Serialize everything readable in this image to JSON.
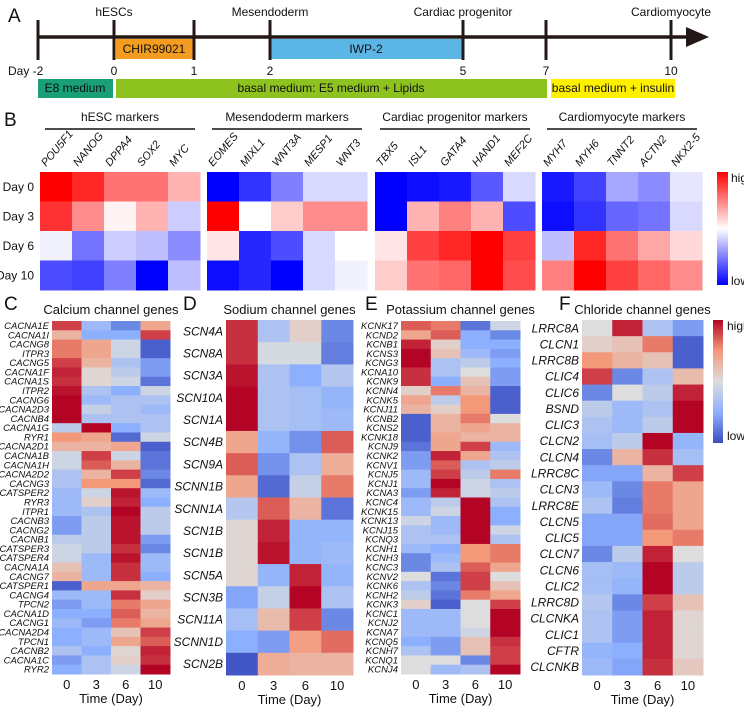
{
  "panel_letters": {
    "a": "A",
    "b": "B",
    "c": "C",
    "d": "D",
    "e": "E",
    "f": "F"
  },
  "panel_a": {
    "stages": [
      "hESCs",
      "Mesendoderm",
      "Cardiac progenitor",
      "Cardiomyocyte"
    ],
    "days": [
      "Day -2",
      "0",
      "1",
      "2",
      "5",
      "7",
      "10"
    ],
    "treatments": [
      {
        "label": "CHIR99021",
        "color": "#f39c1f"
      },
      {
        "label": "IWP-2",
        "color": "#5bb6e6"
      }
    ],
    "media": [
      {
        "label": "E8 medium",
        "color": "#19a078"
      },
      {
        "label": "basal medium: E5 medium + Lipids",
        "color": "#8dc21f"
      },
      {
        "label": "basal medium + insulin",
        "color": "#fff000"
      }
    ]
  },
  "colorbar": {
    "high": "high",
    "low": "low"
  },
  "chart_data": [
    {
      "type": "heatmap",
      "panel": "B",
      "colormap": "bwr",
      "scale": [
        -1,
        1
      ],
      "row_labels": [
        "Day 0",
        "Day 3",
        "Day 6",
        "Day 10"
      ],
      "groups": [
        {
          "title": "hESC markers",
          "genes": [
            "POU5F1",
            "NANOG",
            "DPPA4",
            "SOX2",
            "MYC"
          ],
          "values": [
            [
              1,
              0.8,
              -0.05,
              -0.7
            ],
            [
              0.85,
              0.45,
              -0.55,
              -0.75
            ],
            [
              0.55,
              0.05,
              -0.2,
              -0.5
            ],
            [
              0.55,
              0.3,
              -0.25,
              -1
            ],
            [
              0.3,
              -0.2,
              -0.45,
              -0.25
            ]
          ]
        },
        {
          "title": "Mesendoderm markers",
          "genes": [
            "EOMES",
            "MIXL1",
            "WNT3A",
            "MESP1",
            "WNT3"
          ],
          "values": [
            [
              -1,
              1,
              0.1,
              -0.95
            ],
            [
              -0.8,
              0,
              -0.85,
              -0.85
            ],
            [
              -0.5,
              0.2,
              -0.7,
              -1
            ],
            [
              -0.15,
              0.45,
              -0.15,
              -0.15
            ],
            [
              -0.15,
              0.45,
              0,
              -0.05
            ]
          ]
        },
        {
          "title": "Cardiac progenitor markers",
          "genes": [
            "TBX5",
            "ISL1",
            "GATA4",
            "HAND1",
            "MEF2C"
          ],
          "values": [
            [
              -1,
              -1,
              0.1,
              0.2
            ],
            [
              -0.95,
              0.3,
              0.75,
              0.55
            ],
            [
              -0.9,
              0.5,
              0.85,
              0.6
            ],
            [
              -0.65,
              0.3,
              1,
              1
            ],
            [
              -0.15,
              -0.7,
              0.75,
              0.7
            ]
          ]
        },
        {
          "title": "Cardiomyocyte markers",
          "genes": [
            "MYH7",
            "MYH6",
            "TNNT2",
            "ACTN2",
            "NKX2-5"
          ],
          "values": [
            [
              -0.9,
              -0.95,
              -0.25,
              0.5
            ],
            [
              -0.75,
              -0.8,
              0.85,
              1
            ],
            [
              -0.35,
              -0.6,
              0.55,
              0.75
            ],
            [
              -0.45,
              -0.55,
              0.35,
              0.6
            ],
            [
              -0.1,
              -0.15,
              0.15,
              0.45
            ]
          ]
        }
      ]
    },
    {
      "type": "heatmap",
      "panel": "C",
      "title": "Calcium channel genes",
      "colormap": "coolwarm",
      "scale": [
        -1,
        1
      ],
      "x_ticks": [
        "0",
        "3",
        "6",
        "10"
      ],
      "xlabel": "Time (Day)",
      "genes": [
        "CACNA1E",
        "CACNA1I",
        "CACNG8",
        "ITPR3",
        "CACNG5",
        "CACNA1F",
        "CACNA1S",
        "ITPR2",
        "CACNG6",
        "CACNA2D3",
        "CACNB4",
        "CACNA1G",
        "RYR1",
        "CACNA2D1",
        "CACNA1B",
        "CACNA1H",
        "CACNA2D2",
        "CACNG3",
        "CATSPER2",
        "RYR3",
        "ITPR1",
        "CACNB3",
        "CACNG2",
        "CACNB1",
        "CATSPER3",
        "CATSPER4",
        "CACNA1A",
        "CACNG7",
        "CATSPER1",
        "CACNG4",
        "TPCN2",
        "CACNA1D",
        "CACNG1",
        "CACNA2D4",
        "TPCN1",
        "CACNB2",
        "CACNA1C",
        "RYR2"
      ],
      "values": [
        [
          0.8,
          -0.4,
          -0.7,
          0.4
        ],
        [
          0.3,
          -0.5,
          -0.5,
          0.8
        ],
        [
          0.6,
          0.4,
          -0.1,
          -0.9
        ],
        [
          0.6,
          0.4,
          -0.1,
          -0.9
        ],
        [
          0.8,
          0.3,
          -0.3,
          -0.6
        ],
        [
          0.9,
          0.05,
          -0.2,
          -0.6
        ],
        [
          0.85,
          0.05,
          -0.1,
          -0.8
        ],
        [
          0.95,
          -0.3,
          -0.5,
          -0.1
        ],
        [
          1,
          -0.4,
          -0.3,
          -0.3
        ],
        [
          1,
          -0.15,
          -0.3,
          -0.4
        ],
        [
          1,
          -0.3,
          -0.3,
          -0.3
        ],
        [
          -0.2,
          1,
          -0.5,
          -0.3
        ],
        [
          0.5,
          0.4,
          -0.85,
          -0.1
        ],
        [
          0.3,
          0.3,
          0.4,
          -0.9
        ],
        [
          -0.1,
          0.8,
          -0.1,
          -0.8
        ],
        [
          -0.1,
          0.7,
          0.3,
          -0.8
        ],
        [
          -0.3,
          0.3,
          0.8,
          -0.7
        ],
        [
          -0.3,
          0.5,
          0.5,
          -0.85
        ],
        [
          -0.4,
          -0.1,
          0.95,
          -0.4
        ],
        [
          -0.4,
          0.1,
          0.9,
          -0.5
        ],
        [
          -0.4,
          -0.3,
          1,
          -0.2
        ],
        [
          -0.6,
          -0.2,
          0.95,
          -0.2
        ],
        [
          -0.6,
          -0.2,
          0.95,
          -0.2
        ],
        [
          -0.2,
          -0.2,
          0.95,
          -0.6
        ],
        [
          -0.1,
          -0.2,
          0.85,
          -0.7
        ],
        [
          -0.1,
          -0.4,
          0.95,
          -0.4
        ],
        [
          0.2,
          -0.4,
          0.85,
          -0.4
        ],
        [
          0.3,
          -0.4,
          0.85,
          -0.5
        ],
        [
          -0.9,
          0.4,
          0.4,
          0.3
        ],
        [
          -0.4,
          -0.4,
          0.85,
          0.1
        ],
        [
          -0.6,
          -0.4,
          0.6,
          0.4
        ],
        [
          -0.5,
          -0.5,
          0.7,
          0.3
        ],
        [
          -0.4,
          -0.6,
          0.6,
          0.4
        ],
        [
          -0.5,
          -0.4,
          0.2,
          0.8
        ],
        [
          -0.5,
          -0.4,
          0.4,
          0.7
        ],
        [
          -0.3,
          -0.5,
          0.05,
          0.9
        ],
        [
          -0.6,
          -0.3,
          0.1,
          0.85
        ],
        [
          -0.5,
          -0.3,
          -0.1,
          1
        ]
      ]
    },
    {
      "type": "heatmap",
      "panel": "D",
      "title": "Sodium channel genes",
      "colormap": "coolwarm",
      "scale": [
        -1,
        1
      ],
      "x_ticks": [
        "0",
        "3",
        "6",
        "10"
      ],
      "xlabel": "Time (Day)",
      "genes": [
        "SCN4A",
        "SCN8A",
        "SCN3A",
        "SCN10A",
        "SCN1A",
        "SCN4B",
        "SCN9A",
        "SCNN1B",
        "SCNN1A",
        "SCN1B",
        "SCN1B",
        "SCN5A",
        "SCN3B",
        "SCN11A",
        "SCNN1D",
        "SCN2B"
      ],
      "values": [
        [
          0.85,
          -0.3,
          0.1,
          -0.7
        ],
        [
          0.85,
          -0.05,
          -0.05,
          -0.75
        ],
        [
          0.95,
          -0.3,
          -0.5,
          -0.25
        ],
        [
          1,
          -0.3,
          -0.35,
          -0.45
        ],
        [
          1,
          -0.3,
          -0.35,
          -0.4
        ],
        [
          0.4,
          -0.45,
          -0.65,
          0.7
        ],
        [
          0.7,
          -0.65,
          -0.3,
          0.35
        ],
        [
          0.4,
          -0.85,
          -0.15,
          0.6
        ],
        [
          -0.25,
          0.7,
          0.3,
          -0.8
        ],
        [
          0.05,
          0.9,
          -0.45,
          -0.45
        ],
        [
          0.05,
          0.95,
          -0.45,
          -0.4
        ],
        [
          0.05,
          -0.45,
          0.9,
          -0.45
        ],
        [
          -0.55,
          -0.15,
          1,
          -0.3
        ],
        [
          -0.35,
          0.25,
          0.8,
          -0.7
        ],
        [
          -0.5,
          -0.6,
          0.45,
          0.65
        ],
        [
          -0.95,
          0.35,
          0.3,
          0.3
        ]
      ]
    },
    {
      "type": "heatmap",
      "panel": "E",
      "title": "Potassium channel genes",
      "colormap": "coolwarm",
      "scale": [
        -1,
        1
      ],
      "x_ticks": [
        "0",
        "3",
        "6",
        "10"
      ],
      "xlabel": "Time (Day)",
      "genes": [
        "KCNK17",
        "KCND2",
        "KCNB1",
        "KCNS3",
        "KCNG3",
        "KCNA10",
        "KCNK9",
        "KCNN4",
        "KCNK5",
        "KCNJ11",
        "KCNB2",
        "KCNS2",
        "KCNK18",
        "KCNJ9",
        "KCNK2",
        "KCNV1",
        "KCNJ5",
        "KCNJ1",
        "KCNA3",
        "KCNC4",
        "KCNK15",
        "KCNK13",
        "KCNJ15",
        "KCNQ3",
        "KCNH1",
        "KCNH3",
        "KCNC3",
        "KCNV2",
        "KCNK6",
        "KCNH2",
        "KCNK3",
        "KCNC1",
        "KCNJ2",
        "KCNA7",
        "KCNQ5",
        "KCNH7",
        "KCNQ1",
        "KCNJ4"
      ],
      "values": [
        [
          0.7,
          0.6,
          -0.8,
          -0.1
        ],
        [
          0.4,
          0.7,
          -0.5,
          -0.7
        ],
        [
          0.9,
          0.1,
          -0.5,
          -0.5
        ],
        [
          1,
          0.2,
          -0.4,
          -0.6
        ],
        [
          1,
          -0.3,
          -0.2,
          -0.5
        ],
        [
          0.85,
          -0.3,
          0,
          -0.6
        ],
        [
          0.85,
          -0.5,
          0.2,
          -0.6
        ],
        [
          0.1,
          0.6,
          0.3,
          -0.9
        ],
        [
          0.4,
          -0.2,
          0.5,
          -0.9
        ],
        [
          0.3,
          0.1,
          0.5,
          -0.9
        ],
        [
          -0.9,
          0.3,
          0.6,
          0
        ],
        [
          -0.9,
          0.3,
          0.4,
          0.3
        ],
        [
          -0.9,
          0.4,
          0.3,
          0.3
        ],
        [
          -0.8,
          0.4,
          0.8,
          -0.4
        ],
        [
          -0.6,
          0.9,
          0.4,
          -0.3
        ],
        [
          -0.6,
          0.7,
          -0.3,
          -0.2
        ],
        [
          -0.4,
          0.8,
          -0.2,
          0.6
        ],
        [
          -0.4,
          1,
          -0.1,
          -0.3
        ],
        [
          -0.6,
          0.9,
          -0.1,
          -0.2
        ],
        [
          -0.4,
          -0.2,
          1,
          -0.3
        ],
        [
          -0.4,
          -0.1,
          1,
          -0.5
        ],
        [
          -0.1,
          -0.4,
          1,
          -0.5
        ],
        [
          -0.3,
          -0.4,
          1,
          -0.1
        ],
        [
          -0.3,
          -0.3,
          1,
          -0.3
        ],
        [
          -0.4,
          -0.5,
          0.5,
          0.6
        ],
        [
          -0.7,
          -0.4,
          0.5,
          0.6
        ],
        [
          -0.7,
          -0.3,
          0.7,
          0.4
        ],
        [
          0,
          -0.8,
          0.8,
          0
        ],
        [
          -0.3,
          -0.7,
          0.8,
          0.2
        ],
        [
          -0.2,
          -0.8,
          0.6,
          0.4
        ],
        [
          0.1,
          -0.9,
          0,
          0.8
        ],
        [
          -0.4,
          -0.4,
          0,
          1
        ],
        [
          -0.4,
          -0.4,
          0,
          1
        ],
        [
          -0.4,
          -0.4,
          -0.1,
          1
        ],
        [
          -0.5,
          -0.6,
          0.2,
          0.85
        ],
        [
          -0.3,
          -0.6,
          0.2,
          0.8
        ],
        [
          0,
          0,
          -0.7,
          0.8
        ],
        [
          0,
          -0.4,
          -0.3,
          1
        ]
      ]
    },
    {
      "type": "heatmap",
      "panel": "F",
      "title": "Chloride channel genes",
      "colormap": "coolwarm",
      "scale": [
        -1,
        1
      ],
      "x_ticks": [
        "0",
        "3",
        "6",
        "10"
      ],
      "xlabel": "Time (Day)",
      "genes": [
        "LRRC8A",
        "CLCN1",
        "LRRC8B",
        "CLIC4",
        "CLIC6",
        "BSND",
        "CLIC3",
        "CLCN2",
        "CLCN4",
        "LRRC8C",
        "CLCN3",
        "LRRC8E",
        "CLCN5",
        "CLIC5",
        "CLCN7",
        "CLCN6",
        "CLIC2",
        "LRRC8D",
        "CLCNKA",
        "CLIC1",
        "CFTR",
        "CLCNKB"
      ],
      "values": [
        [
          0,
          0.9,
          -0.3,
          -0.6
        ],
        [
          0.1,
          0.2,
          0.6,
          -0.9
        ],
        [
          0.5,
          0.3,
          0.2,
          -0.9
        ],
        [
          0.8,
          -0.7,
          -0.3,
          0.25
        ],
        [
          -0.7,
          0,
          -0.2,
          0.9
        ],
        [
          -0.2,
          -0.4,
          -0.3,
          1
        ],
        [
          -0.3,
          -0.4,
          -0.2,
          1
        ],
        [
          -0.35,
          -0.2,
          1,
          -0.45
        ],
        [
          -0.7,
          0.3,
          0.85,
          -0.35
        ],
        [
          -0.55,
          -0.55,
          0.3,
          0.8
        ],
        [
          -0.4,
          -0.7,
          0.6,
          0.4
        ],
        [
          -0.3,
          -0.75,
          0.6,
          0.4
        ],
        [
          -0.55,
          -0.55,
          0.65,
          0.4
        ],
        [
          -0.55,
          -0.55,
          0.5,
          0.6
        ],
        [
          -0.7,
          -0.2,
          0.9,
          0
        ],
        [
          -0.35,
          -0.4,
          1,
          -0.2
        ],
        [
          -0.35,
          -0.45,
          1,
          -0.2
        ],
        [
          -0.25,
          -0.7,
          0.8,
          0.2
        ],
        [
          -0.3,
          -0.6,
          0.9,
          0.05
        ],
        [
          -0.3,
          -0.6,
          0.9,
          0.05
        ],
        [
          -0.45,
          -0.5,
          0.9,
          0.05
        ],
        [
          -0.4,
          -0.55,
          0.85,
          0.15
        ]
      ]
    }
  ]
}
